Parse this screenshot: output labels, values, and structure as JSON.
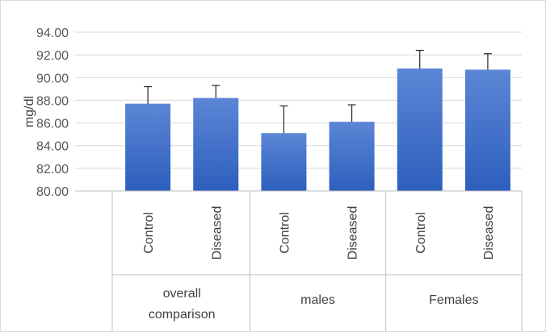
{
  "chart_data": {
    "type": "bar",
    "ylabel": "mg/dl",
    "ylim": [
      80,
      94
    ],
    "yticks": [
      "80.00",
      "82.00",
      "84.00",
      "86.00",
      "88.00",
      "90.00",
      "92.00",
      "94.00"
    ],
    "grid": true,
    "groups": [
      {
        "label": [
          "overall",
          "comparison"
        ],
        "categories": [
          "Control",
          "Diseased"
        ]
      },
      {
        "label": [
          "males"
        ],
        "categories": [
          "Control",
          "Diseased"
        ]
      },
      {
        "label": [
          "Females"
        ],
        "categories": [
          "Control",
          "Diseased"
        ]
      }
    ],
    "values": [
      87.7,
      88.2,
      85.1,
      86.1,
      90.8,
      90.7
    ],
    "errors": [
      1.5,
      1.1,
      2.4,
      1.5,
      1.6,
      1.4
    ],
    "colors": {
      "bar_top": "#5b86d6",
      "bar_bottom": "#2e5fbd",
      "grid": "#d9d9d9",
      "axis": "#bfbfbf",
      "error": "#262626"
    }
  }
}
